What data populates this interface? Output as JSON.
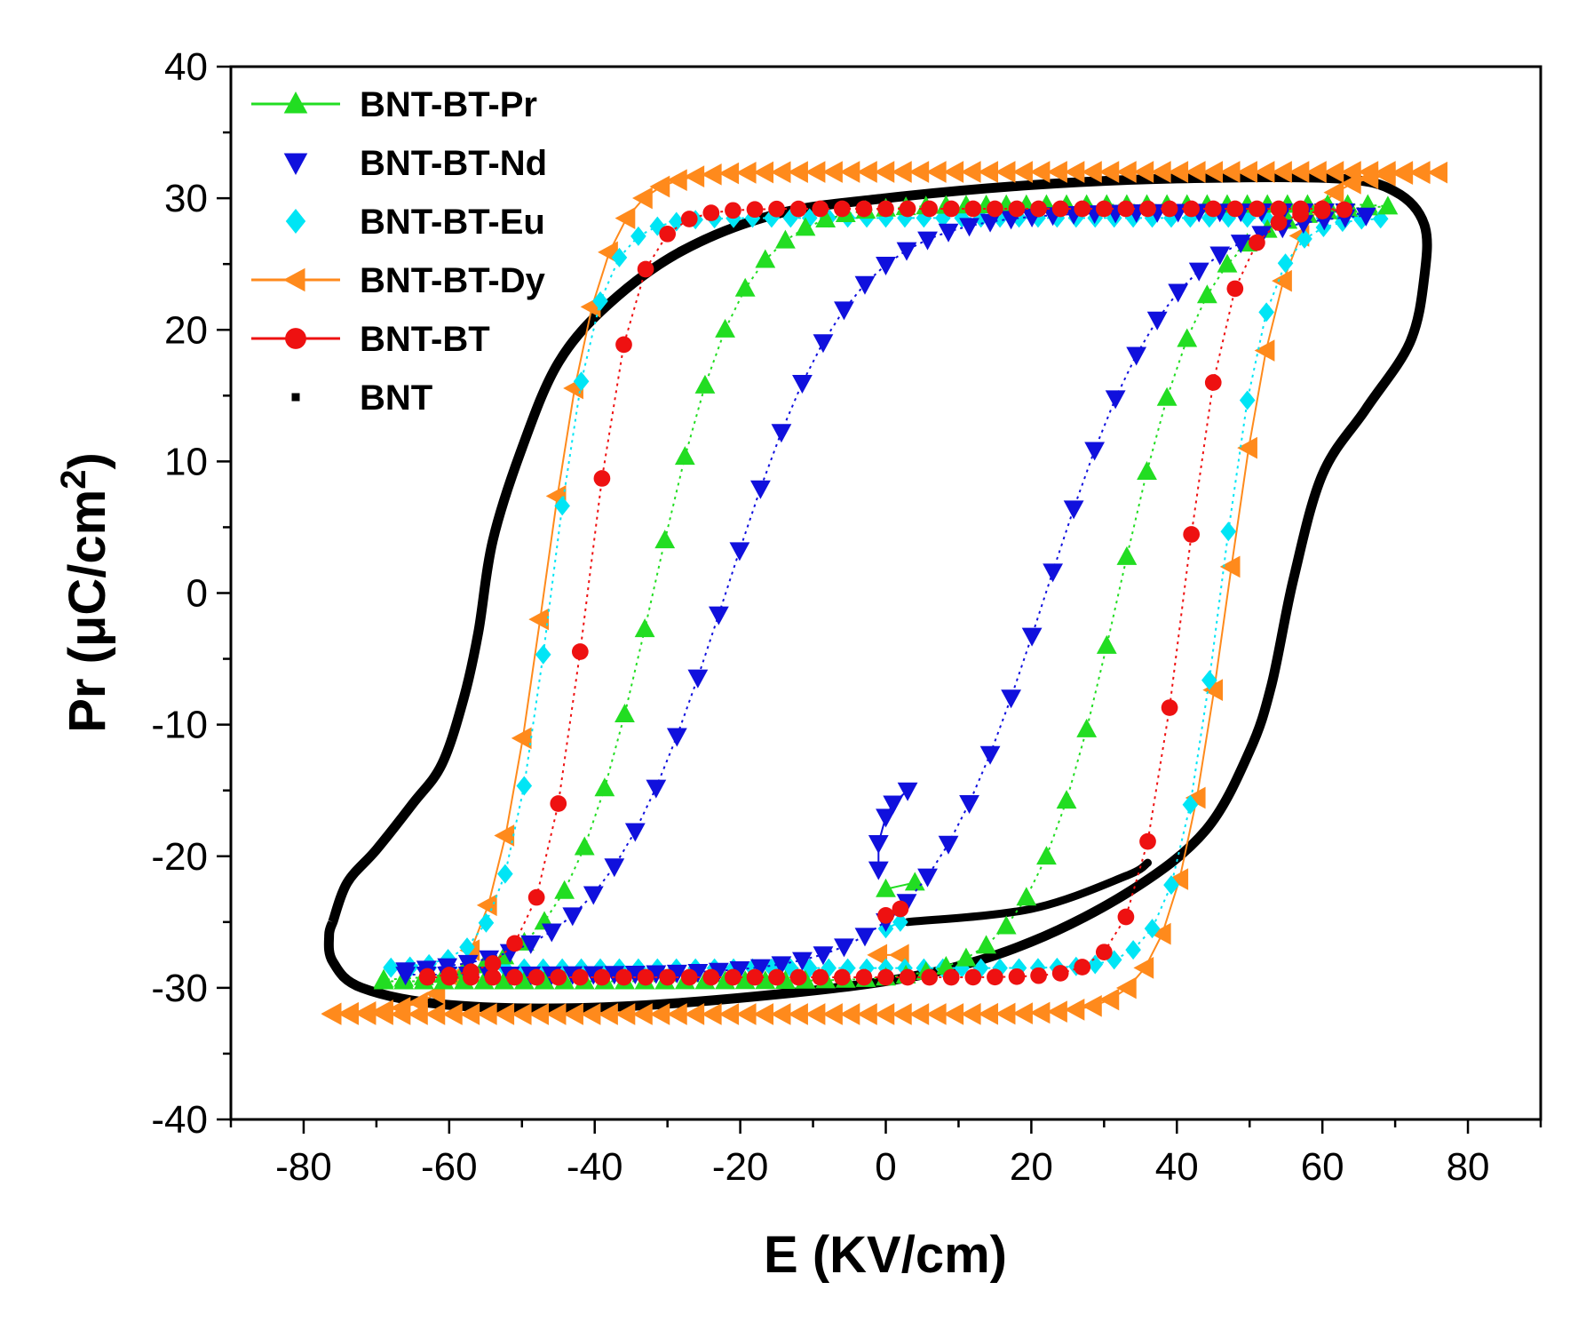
{
  "chart_data": {
    "type": "scatter",
    "xlabel": "E (KV/cm)",
    "ylabel_main": "Pr (μC/cm",
    "ylabel_sup": "2",
    "ylabel_close": ")",
    "xlim": [
      -90,
      90
    ],
    "ylim": [
      -40,
      40
    ],
    "xticks": [
      -80,
      -60,
      -40,
      -20,
      0,
      20,
      40,
      60,
      80
    ],
    "yticks": [
      -40,
      -30,
      -20,
      -10,
      0,
      10,
      20,
      30,
      40
    ],
    "grid": false,
    "legend_position": "top-left",
    "series": [
      {
        "name": "BNT-BT-Pr",
        "color": "#22dd22",
        "marker": "triangle-up",
        "line": "dotted",
        "legend_line": true,
        "params": {
          "Ps": 29.5,
          "Ec": 32,
          "w": 12,
          "Emax": 69
        },
        "initial": [
          [
            0,
            -22.5
          ],
          [
            4,
            -22
          ]
        ]
      },
      {
        "name": "BNT-BT-Nd",
        "color": "#1010dd",
        "marker": "triangle-down",
        "line": "dotted",
        "legend_line": false,
        "params": {
          "Ps": 29,
          "Ec": 22,
          "w": 17,
          "Emax": 66
        },
        "initial": [
          [
            -1,
            -21
          ],
          [
            -1,
            -19
          ],
          [
            0,
            -17
          ],
          [
            1,
            -16
          ],
          [
            3,
            -15
          ]
        ]
      },
      {
        "name": "BNT-BT-Eu",
        "color": "#00e5f5",
        "marker": "diamond",
        "line": "dotted",
        "legend_line": false,
        "params": {
          "Ps": 28.5,
          "Ec": 46,
          "w": 6.5,
          "Emax": 68
        },
        "initial": [
          [
            0,
            -25.5
          ],
          [
            2,
            -25
          ]
        ]
      },
      {
        "name": "BNT-BT-Dy",
        "color": "#ff8a1c",
        "marker": "triangle-left",
        "line": "solid",
        "legend_line": true,
        "params": {
          "Ps": 32,
          "Ec": 47,
          "w": 8,
          "Emax": 76
        },
        "initial": [
          [
            -1,
            -27.5
          ],
          [
            2,
            -27.5
          ]
        ]
      },
      {
        "name": "BNT-BT",
        "color": "#ee1111",
        "marker": "circle",
        "line": "dotted",
        "legend_line": true,
        "params": {
          "Ps": 29.2,
          "Ec": 41,
          "w": 6.5,
          "Emax": 63
        },
        "initial": [
          [
            0,
            -24.5
          ],
          [
            2,
            -24
          ]
        ]
      },
      {
        "name": "BNT",
        "color": "#000000",
        "marker": "square",
        "line": "thick",
        "legend_line": false,
        "loop_points": [
          [
            -76,
            -25
          ],
          [
            -74,
            -22
          ],
          [
            -70,
            -19.5
          ],
          [
            -65,
            -16
          ],
          [
            -61,
            -13
          ],
          [
            -58,
            -8
          ],
          [
            -56,
            -3
          ],
          [
            -54,
            4
          ],
          [
            -50,
            11
          ],
          [
            -45,
            17.5
          ],
          [
            -38,
            22
          ],
          [
            -28,
            26
          ],
          [
            -15,
            28.8
          ],
          [
            0,
            30
          ],
          [
            20,
            31
          ],
          [
            40,
            31.5
          ],
          [
            62,
            31.5
          ],
          [
            70,
            30.5
          ],
          [
            74,
            28
          ],
          [
            74,
            24
          ],
          [
            72,
            19
          ],
          [
            66,
            14
          ],
          [
            60,
            9
          ],
          [
            56,
            1
          ],
          [
            53,
            -7
          ],
          [
            50,
            -12
          ],
          [
            44,
            -18
          ],
          [
            34,
            -22.5
          ],
          [
            20,
            -26.5
          ],
          [
            5,
            -29
          ],
          [
            -15,
            -30.5
          ],
          [
            -40,
            -31.5
          ],
          [
            -60,
            -31.3
          ],
          [
            -72,
            -30
          ],
          [
            -76,
            -28
          ],
          [
            -76.5,
            -26
          ],
          [
            -76,
            -25
          ]
        ],
        "initial": [
          [
            3,
            -25
          ],
          [
            20,
            -24
          ],
          [
            33,
            -21.5
          ],
          [
            36,
            -20.5
          ]
        ]
      }
    ]
  }
}
